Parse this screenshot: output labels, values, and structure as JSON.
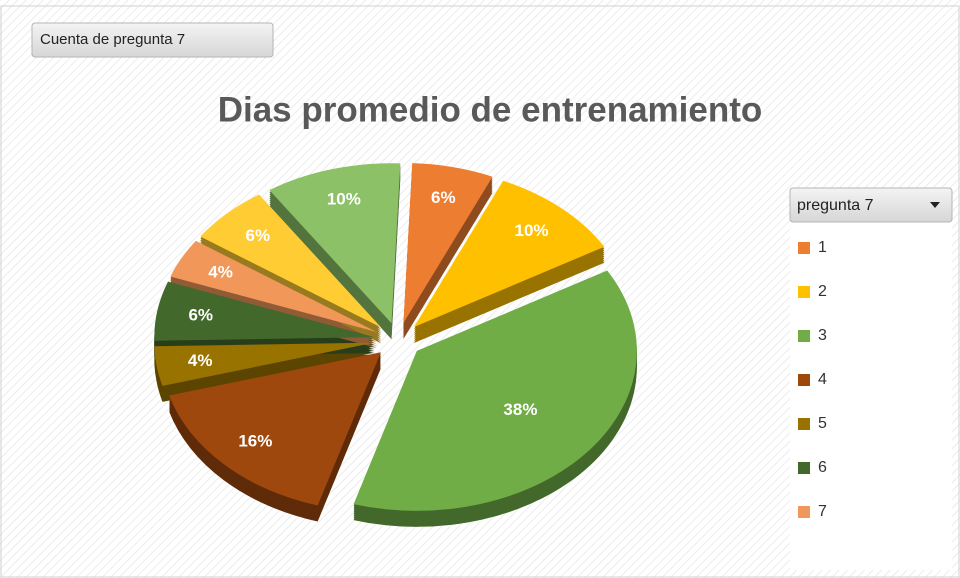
{
  "chart_data": {
    "type": "pie",
    "title": "Dias promedio de entrenamiento",
    "field_button": "Cuenta de pregunta 7",
    "legend_title": "pregunta 7",
    "categories": [
      "1",
      "2",
      "3",
      "4",
      "5",
      "6",
      "7",
      null,
      null
    ],
    "values": [
      6,
      10,
      38,
      16,
      4,
      6,
      4,
      6,
      10
    ],
    "value_labels": [
      "6%",
      "10%",
      "38%",
      "16%",
      "4%",
      "6%",
      "4%",
      "6%",
      "10%"
    ],
    "colors": [
      "#ED7D31",
      "#FFC000",
      "#70AD47",
      "#9E480E",
      "#997300",
      "#43682B",
      "#F1975A",
      "#FFCD33",
      "#8CC168"
    ],
    "legend": "right"
  }
}
